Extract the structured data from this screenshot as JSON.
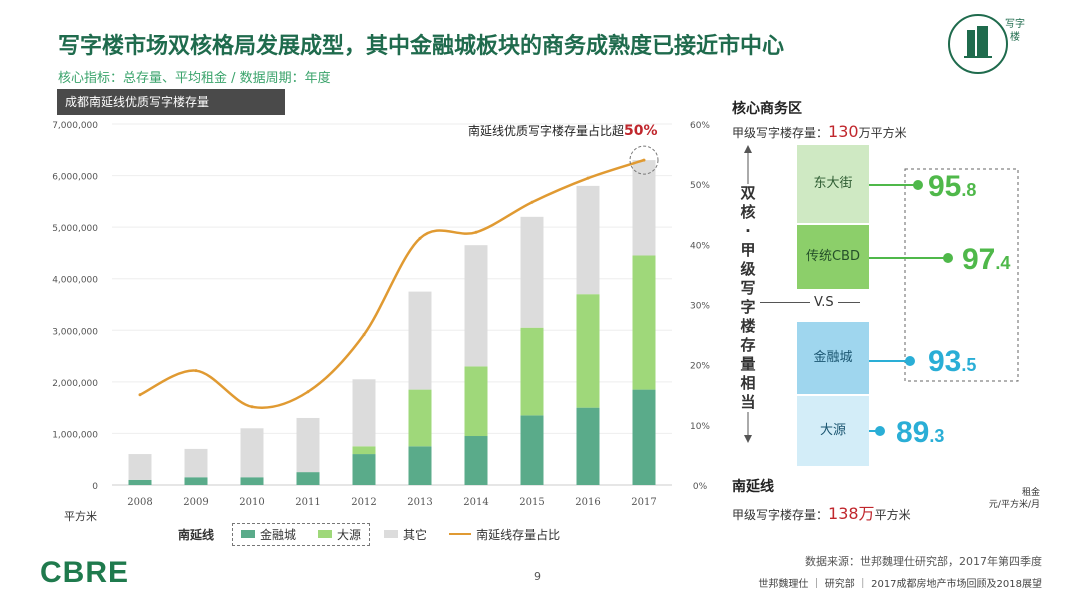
{
  "header": {
    "title": "写字楼市场双核格局发展成型，其中金融城板块的商务成熟度已接近市中心",
    "subtitle": "核心指标：总存量、平均租金 / 数据周期：年度",
    "chart_tag": "成都南延线优质写字楼存量",
    "logo_label": "写字楼"
  },
  "chart_data": {
    "type": "bar",
    "stacked": true,
    "categories": [
      "2008",
      "2009",
      "2010",
      "2011",
      "2012",
      "2013",
      "2014",
      "2015",
      "2016",
      "2017"
    ],
    "series": [
      {
        "name": "金融城",
        "color": "#5aab8a",
        "values": [
          100000,
          150000,
          150000,
          250000,
          600000,
          750000,
          950000,
          1350000,
          1500000,
          1850000
        ]
      },
      {
        "name": "大源",
        "color": "#9fd87a",
        "values": [
          0,
          0,
          0,
          0,
          150000,
          1100000,
          1350000,
          1700000,
          2200000,
          2600000
        ]
      },
      {
        "name": "其它",
        "color": "#dcdcdc",
        "values": [
          500000,
          550000,
          950000,
          1050000,
          1300000,
          1900000,
          2350000,
          2150000,
          2100000,
          1850000
        ]
      }
    ],
    "line": {
      "name": "南延线存量占比",
      "color": "#e09a32",
      "values": [
        15,
        19,
        13,
        15.5,
        25,
        41,
        42,
        47,
        51,
        54
      ]
    },
    "y_ticks": [
      "7,000,000",
      "6,000,000",
      "5,000,000",
      "4,000,000",
      "3,000,000",
      "2,000,000",
      "1,000,000",
      "0"
    ],
    "y2_ticks": [
      "60%",
      "50%",
      "40%",
      "30%",
      "20%",
      "10%",
      "0%"
    ],
    "ylim": [
      0,
      7000000
    ],
    "y2lim": [
      0,
      60
    ],
    "ylabel": "平方米",
    "annotation_text": "南延线优质写字楼存量占比超",
    "annotation_value": "50%",
    "legend_title": "南延线",
    "legend_line_label": "南延线存量占比"
  },
  "right_panel": {
    "core_title": "核心商务区",
    "core_stock_label": "甲级写字楼存量：",
    "core_stock_value": "130",
    "core_stock_unit": "万平方米",
    "south_title": "南延线",
    "south_stock_label": "甲级写字楼存量：",
    "south_stock_value": "138万",
    "south_stock_unit": "平方米",
    "vertical_text": "双核·甲级写字楼存量相当",
    "vs": "V.S",
    "rent_title": "租金",
    "rent_unit": "元/平方米/月",
    "areas": [
      {
        "name": "东大街",
        "rent": "95",
        "rent_dec": ".8",
        "color": "#4fb84a"
      },
      {
        "name": "传统CBD",
        "rent": "97",
        "rent_dec": ".4",
        "color": "#4fb84a"
      },
      {
        "name": "金融城",
        "rent": "93",
        "rent_dec": ".5",
        "color": "#2aaed6"
      },
      {
        "name": "大源",
        "rent": "89",
        "rent_dec": ".3",
        "color": "#2aaed6"
      }
    ]
  },
  "footer": {
    "source": "数据来源：世邦魏理仕研究部，2017年第四季度",
    "page": "9",
    "company": "世邦魏理仕 ｜ 研究部 ｜ 2017成都房地产市场回顾及2018展望",
    "brand": "CBRE"
  }
}
